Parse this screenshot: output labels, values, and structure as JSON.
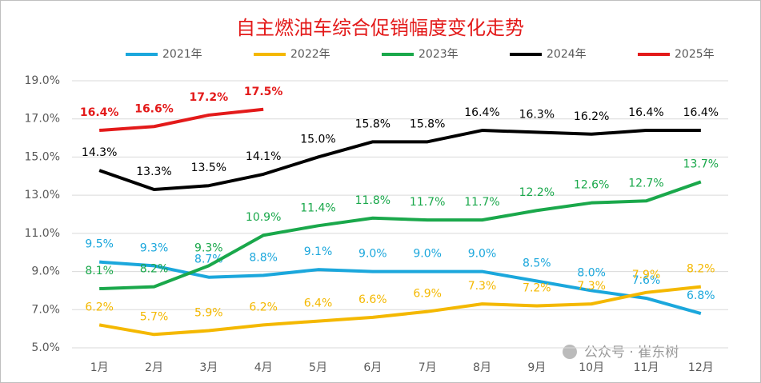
{
  "chart_data": {
    "type": "line",
    "title": "自主燃油车综合促销幅度变化走势",
    "categories": [
      "1月",
      "2月",
      "3月",
      "4月",
      "5月",
      "6月",
      "7月",
      "8月",
      "9月",
      "10月",
      "11月",
      "12月"
    ],
    "ylim": [
      5,
      19
    ],
    "yticks": [
      {
        "value": 5,
        "label": "5.0%"
      },
      {
        "value": 7,
        "label": "7.0%"
      },
      {
        "value": 9,
        "label": "9.0%"
      },
      {
        "value": 11,
        "label": "11.0%"
      },
      {
        "value": 13,
        "label": "13.0%"
      },
      {
        "value": 15,
        "label": "15.0%"
      },
      {
        "value": 17,
        "label": "17.0%"
      },
      {
        "value": 19,
        "label": "19.0%"
      }
    ],
    "grid": true,
    "legend": "top",
    "series": [
      {
        "name": "2021年",
        "color": "#1ba7dc",
        "values": [
          9.5,
          9.3,
          8.7,
          8.8,
          9.1,
          9.0,
          9.0,
          9.0,
          8.5,
          8.0,
          7.6,
          6.8
        ],
        "value_labels": [
          "9.5%",
          "9.3%",
          "8.7%",
          "8.8%",
          "9.1%",
          "9.0%",
          "9.0%",
          "9.0%",
          "8.5%",
          "8.0%",
          "7.6%",
          "6.8%"
        ]
      },
      {
        "name": "2022年",
        "color": "#f4b800",
        "values": [
          6.2,
          5.7,
          5.9,
          6.2,
          6.4,
          6.6,
          6.9,
          7.3,
          7.2,
          7.3,
          7.9,
          8.2
        ],
        "value_labels": [
          "6.2%",
          "5.7%",
          "5.9%",
          "6.2%",
          "6.4%",
          "6.6%",
          "6.9%",
          "7.3%",
          "7.2%",
          "7.3%",
          "7.9%",
          "8.2%"
        ]
      },
      {
        "name": "2023年",
        "color": "#1aa84b",
        "values": [
          8.1,
          8.2,
          9.3,
          10.9,
          11.4,
          11.8,
          11.7,
          11.7,
          12.2,
          12.6,
          12.7,
          13.7
        ],
        "value_labels": [
          "8.1%",
          "8.2%",
          "9.3%",
          "10.9%",
          "11.4%",
          "11.8%",
          "11.7%",
          "11.7%",
          "12.2%",
          "12.6%",
          "12.7%",
          "13.7%"
        ]
      },
      {
        "name": "2024年",
        "color": "#000000",
        "values": [
          14.3,
          13.3,
          13.5,
          14.1,
          15.0,
          15.8,
          15.8,
          16.4,
          16.3,
          16.2,
          16.4,
          16.4
        ],
        "value_labels": [
          "14.3%",
          "13.3%",
          "13.5%",
          "14.1%",
          "15.0%",
          "15.8%",
          "15.8%",
          "16.4%",
          "16.3%",
          "16.2%",
          "16.4%",
          "16.4%"
        ]
      },
      {
        "name": "2025年",
        "color": "#e31a1a",
        "values": [
          16.4,
          16.6,
          17.2,
          17.5,
          null,
          null,
          null,
          null,
          null,
          null,
          null,
          null
        ],
        "value_labels": [
          "16.4%",
          "16.6%",
          "17.2%",
          "17.5%",
          null,
          null,
          null,
          null,
          null,
          null,
          null,
          null
        ]
      }
    ]
  },
  "watermark": "公众号 · 崔东树"
}
